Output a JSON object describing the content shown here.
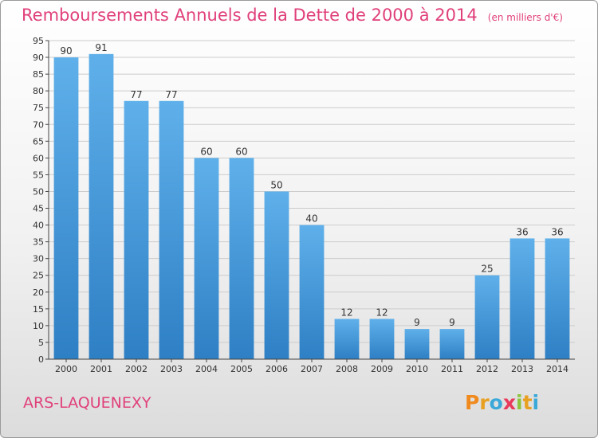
{
  "title": "Remboursements Annuels de la Dette de 2000 à 2014",
  "unit": "(en milliers d'€)",
  "commune": "ARS-LAQUENEXY",
  "brand": {
    "letters": [
      "P",
      "r",
      "o",
      "x",
      "i",
      "t",
      "i"
    ],
    "colors": [
      "#f08a1c",
      "#e8a020",
      "#3aa8d8",
      "#e83a5a",
      "#8cc43a",
      "#e8a020",
      "#3aa8d8"
    ]
  },
  "colors": {
    "bar_top": "#5fb0ea",
    "bar_bottom": "#2e7fc4",
    "title": "#e0407a",
    "grid": "#cccccc",
    "axis": "#444444"
  },
  "chart_data": {
    "type": "bar",
    "categories": [
      "2000",
      "2001",
      "2002",
      "2003",
      "2004",
      "2005",
      "2006",
      "2007",
      "2008",
      "2009",
      "2010",
      "2011",
      "2012",
      "2013",
      "2014"
    ],
    "values": [
      90,
      91,
      77,
      77,
      60,
      60,
      50,
      40,
      12,
      12,
      9,
      9,
      25,
      36,
      36
    ],
    "ylim": [
      0,
      95
    ],
    "yticks": [
      0,
      5,
      10,
      15,
      20,
      25,
      30,
      35,
      40,
      45,
      50,
      55,
      60,
      65,
      70,
      75,
      80,
      85,
      90,
      95
    ],
    "grid": true,
    "data_labels": true,
    "title": "Remboursements Annuels de la Dette de 2000 à 2014",
    "xlabel": "",
    "ylabel": ""
  }
}
